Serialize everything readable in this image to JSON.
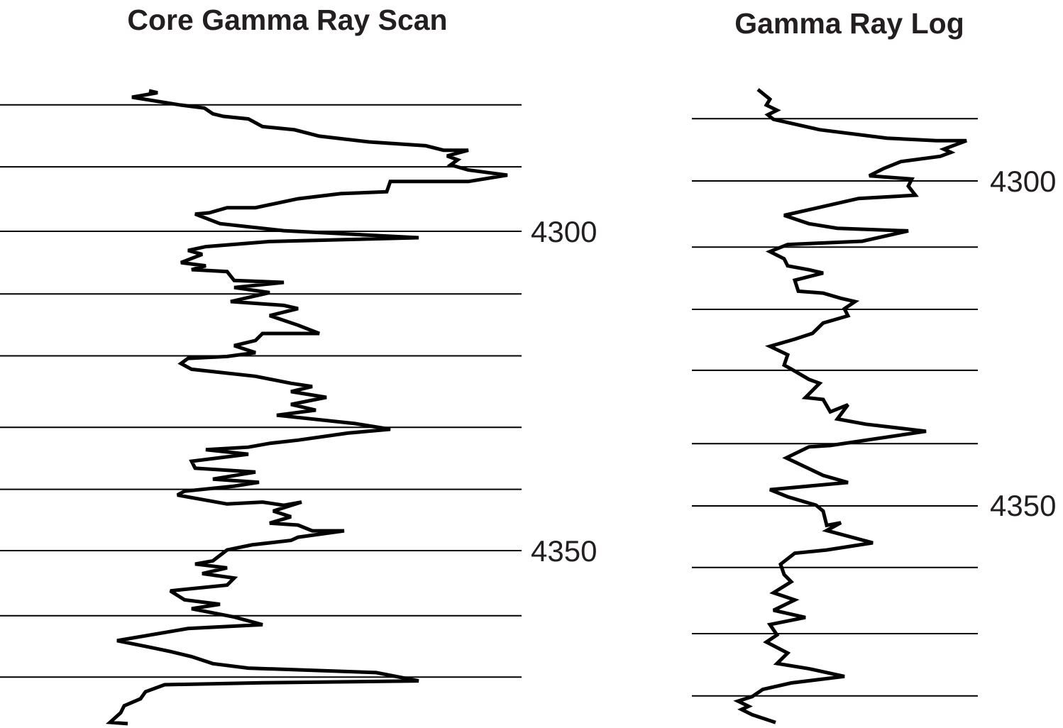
{
  "chart_data": [
    {
      "type": "line",
      "title": "Core Gamma Ray Scan",
      "xlim": [
        0,
        147
      ],
      "ylim": [
        4275,
        4377.5
      ],
      "yticks": [
        4300,
        4350
      ],
      "depth_lines": [
        4280.2,
        4289.9,
        4300,
        4309.8,
        4319.5,
        4330.7,
        4340.4,
        4350,
        4360.2,
        4369.8
      ],
      "series": [
        {
          "color": "#000000",
          "x": [
            42,
            44.4,
            37.2,
            50.6,
            57.6,
            60,
            63,
            70,
            74,
            83,
            90,
            104,
            120,
            125,
            132,
            126,
            129,
            127,
            132,
            143,
            132,
            110,
            109,
            96,
            84,
            72,
            64,
            59,
            55,
            62,
            80,
            118,
            76,
            58,
            53,
            57,
            51,
            58,
            54,
            64,
            66,
            80,
            66,
            76,
            65,
            80,
            84,
            76,
            84,
            90,
            74,
            72,
            66,
            72,
            64,
            53,
            51,
            54,
            72,
            82,
            88,
            82,
            92,
            82,
            89,
            78,
            100,
            110,
            98,
            84,
            76,
            70,
            58,
            70,
            54,
            55,
            72,
            60,
            73,
            66,
            52,
            50,
            64,
            74,
            80,
            85,
            77,
            82,
            76,
            84,
            88,
            97,
            84,
            82,
            71,
            64,
            60,
            55,
            64,
            57,
            66,
            64,
            48,
            52,
            62,
            54,
            66,
            74,
            53,
            33,
            42,
            48,
            54,
            60,
            70,
            106,
            118,
            74,
            46.4,
            41,
            39.6,
            35,
            34,
            31,
            36
          ],
          "values": [
            4278.0,
            4278.3,
            4279.0,
            4280.2,
            4280.7,
            4281.6,
            4282.0,
            4282.4,
            4283.6,
            4284.1,
            4285.1,
            4286.0,
            4286.6,
            4287.3,
            4287.3,
            4288.2,
            4288.8,
            4289.6,
            4290.4,
            4291.2,
            4292.2,
            4292.2,
            4293.8,
            4294.1,
            4294.9,
            4296.3,
            4296.3,
            4297.1,
            4297.3,
            4298.8,
            4299.9,
            4301.0,
            4301.6,
            4302.4,
            4303.0,
            4303.6,
            4304.9,
            4305.4,
            4306.0,
            4306.3,
            4307.7,
            4308.0,
            4308.8,
            4309.6,
            4311.0,
            4311.6,
            4312.1,
            4313.2,
            4314.7,
            4316.0,
            4316.0,
            4317.1,
            4317.9,
            4319.0,
            4319.6,
            4319.9,
            4320.7,
            4321.6,
            4322.7,
            4323.8,
            4324.3,
            4325.1,
            4326.0,
            4327.1,
            4328.0,
            4328.8,
            4330.1,
            4331.0,
            4331.6,
            4332.7,
            4333.2,
            4333.8,
            4334.2,
            4334.9,
            4336.0,
            4337.1,
            4337.7,
            4338.8,
            4339.3,
            4339.9,
            4340.7,
            4341.3,
            4342.7,
            4342.4,
            4342.9,
            4342.4,
            4343.8,
            4344.7,
            4345.7,
            4346.0,
            4346.9,
            4346.9,
            4347.9,
            4348.4,
            4349.1,
            4349.9,
            4351.6,
            4352.1,
            4352.7,
            4353.6,
            4354.3,
            4355.4,
            4356.3,
            4357.7,
            4358.4,
            4359.1,
            4360.4,
            4361.6,
            4362.2,
            4364.1,
            4365.1,
            4365.8,
            4366.6,
            4367.7,
            4368.4,
            4369.1,
            4370.4,
            4370.7,
            4371.0,
            4372.1,
            4373.2,
            4374.3,
            4375.4,
            4376.9,
            4377.1
          ]
        }
      ]
    },
    {
      "type": "line",
      "title": "Gamma Ray Log",
      "xlim": [
        0,
        80.6
      ],
      "ylim": [
        4285,
        4384
      ],
      "yticks": [
        4300,
        4350
      ],
      "depth_lines": [
        4290.4,
        4300,
        4310.2,
        4319.8,
        4329.2,
        4340.5,
        4350.1,
        4359.6,
        4369.8,
        4379.4
      ],
      "series": [
        {
          "color": "#000000",
          "x": [
            18.6,
            22,
            21,
            24,
            21.4,
            23,
            36,
            55,
            69,
            77.4,
            71,
            73,
            70,
            59,
            54,
            50,
            62,
            61,
            63,
            47,
            26,
            33,
            41,
            61,
            48,
            27,
            22,
            26,
            27,
            33,
            37,
            29,
            30,
            37,
            42,
            46,
            43,
            44,
            37,
            34,
            29,
            22,
            27,
            26,
            28,
            33,
            36,
            32,
            37,
            39,
            44,
            41,
            49,
            66,
            39,
            33,
            26.6,
            37,
            44,
            22,
            27,
            35,
            37,
            38,
            42,
            38,
            51,
            38,
            29,
            25,
            26,
            28,
            23,
            29,
            23,
            32,
            22,
            24,
            21,
            27,
            24,
            33,
            43,
            28,
            20,
            17,
            13,
            16,
            14,
            17,
            23.6
          ],
          "values": [
            4285.9,
            4287.4,
            4288.3,
            4289.1,
            4289.8,
            4290.5,
            4292.1,
            4293.4,
            4293.8,
            4293.8,
            4295.1,
            4295.6,
            4296.2,
            4297.0,
            4298.1,
            4299.2,
            4299.7,
            4300.8,
            4302.2,
            4302.7,
            4305.3,
            4306.6,
            4307.3,
            4307.7,
            4309.3,
            4309.8,
            4310.9,
            4312.0,
            4313.1,
            4313.7,
            4314.2,
            4315.3,
            4317.0,
            4317.3,
            4318.1,
            4318.6,
            4319.7,
            4320.8,
            4321.9,
            4323.5,
            4324.4,
            4325.5,
            4326.8,
            4328.4,
            4329.0,
            4330.6,
            4331.2,
            4333.4,
            4333.7,
            4335.6,
            4334.5,
            4336.7,
            4337.5,
            4338.6,
            4340.8,
            4341.0,
            4342.7,
            4345.4,
            4346.5,
            4347.6,
            4348.7,
            4350.0,
            4350.9,
            4353.1,
            4352.7,
            4353.9,
            4355.8,
            4356.9,
            4357.4,
            4359.1,
            4360.7,
            4361.8,
            4363.5,
            4364.6,
            4366.2,
            4367.3,
            4368.4,
            4370.0,
            4371.1,
            4372.8,
            4374.4,
            4375.2,
            4376.4,
            4377.4,
            4378.4,
            4379.5,
            4380.2,
            4381.0,
            4381.5,
            4382.3,
            4383.5
          ]
        }
      ]
    }
  ]
}
